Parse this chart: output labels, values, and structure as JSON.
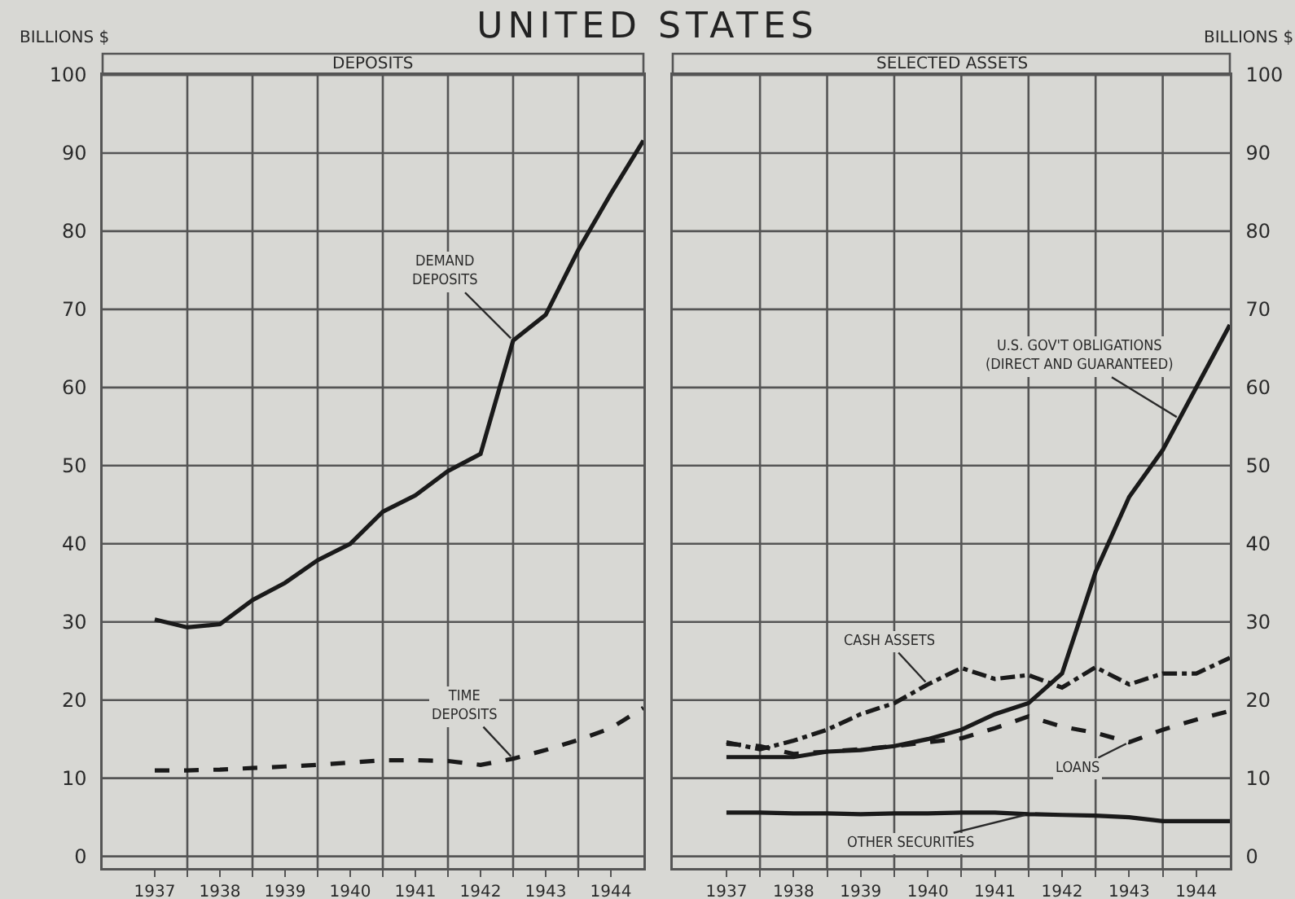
{
  "chart_data": [
    {
      "type": "line",
      "title": "UNITED STATES",
      "subtitle": "DEPOSITS",
      "ylabel": "BILLIONS $",
      "x": [
        1937,
        1937.5,
        1938,
        1938.5,
        1939,
        1939.5,
        1940,
        1940.5,
        1941,
        1941.5,
        1942,
        1942.5,
        1943,
        1943.5,
        1944,
        1944.5
      ],
      "series": [
        {
          "color": "#1a1a1a",
          "line_style": "solid",
          "values": [
            30.3,
            29.3,
            29.7,
            32.8,
            35,
            37.9,
            40,
            44.1,
            46.2,
            49.3,
            51.5,
            66,
            69.3,
            77.6,
            84.8,
            91.6
          ]
        },
        {
          "color": "#1a1a1a",
          "line_style": "dashed",
          "values": [
            11,
            11,
            11.1,
            11.3,
            11.5,
            11.7,
            12,
            12.3,
            12.3,
            12.2,
            11.7,
            12.5,
            13.6,
            14.9,
            16.4,
            19
          ]
        }
      ],
      "annotations": [
        {
          "text": "DEMAND\nDEPOSITS",
          "x": 1942.5,
          "y": 66
        },
        {
          "text": "TIME\nDEPOSITS",
          "x": 1942.5,
          "y": 12.5
        }
      ],
      "xlim": [
        1936.2,
        1944.5
      ],
      "xticks": [
        1937,
        {
          "value": 1937.5,
          "label": null
        },
        1938,
        {
          "value": 1938.5,
          "label": null
        },
        1939,
        {
          "value": 1939.5,
          "label": null
        },
        1940,
        {
          "value": 1940.5,
          "label": null
        },
        1941,
        {
          "value": 1941.5,
          "label": null
        },
        1942,
        {
          "value": 1942.5,
          "label": null
        },
        1943,
        {
          "value": 1943.5,
          "label": null
        },
        1944
      ],
      "ylim": [
        -1.5,
        100
      ],
      "yticks": [
        0,
        10,
        20,
        30,
        40,
        50,
        60,
        70,
        80,
        90,
        100
      ],
      "grid": true
    },
    {
      "type": "line",
      "subtitle": "SELECTED ASSETS",
      "ylabel": "BILLIONS $",
      "x": [
        1937,
        1937.5,
        1938,
        1938.5,
        1939,
        1939.5,
        1940,
        1940.5,
        1941,
        1941.5,
        1942,
        1942.5,
        1943,
        1943.5,
        1944,
        1944.5
      ],
      "series": [
        {
          "color": "#1a1a1a",
          "line_style": "solid",
          "values": [
            12.7,
            12.7,
            12.7,
            13.4,
            13.6,
            14.1,
            15,
            16.2,
            18.2,
            19.6,
            23.4,
            36.4,
            46,
            52,
            60,
            68
          ]
        },
        {
          "color": "#1a1a1a",
          "line_style": "dashdot",
          "values": [
            14.6,
            13.7,
            14.8,
            16.2,
            18.2,
            19.6,
            22,
            24.1,
            22.7,
            23.2,
            21.6,
            24.2,
            22,
            23.4,
            23.4,
            25.4
          ]
        },
        {
          "color": "#1a1a1a",
          "line_style": "dashed",
          "values": [
            14.4,
            14.1,
            13.1,
            13.4,
            13.7,
            14.1,
            14.6,
            15.1,
            16.4,
            17.9,
            16.6,
            15.8,
            14.6,
            16.2,
            17.5,
            18.6
          ]
        },
        {
          "color": "#1a1a1a",
          "line_style": "solid",
          "values": [
            5.6,
            5.6,
            5.5,
            5.5,
            5.4,
            5.5,
            5.5,
            5.6,
            5.6,
            5.4,
            5.3,
            5.2,
            5,
            4.5,
            4.5,
            4.5
          ]
        }
      ],
      "annotations": [
        {
          "text": "U.S. GOV'T OBLIGATIONS\n(DIRECT AND GUARANTEED)",
          "x": 1943.75,
          "y": 56
        },
        {
          "text": "CASH ASSETS",
          "x": 1940,
          "y": 22
        },
        {
          "text": "LOANS",
          "x": 1943,
          "y": 14.6
        },
        {
          "text": "OTHER SECURITIES",
          "x": 1941.5,
          "y": 5.4
        }
      ],
      "xlim": [
        1936.2,
        1944.5
      ],
      "xticks": [
        1937,
        {
          "value": 1937.5,
          "label": null
        },
        1938,
        {
          "value": 1938.5,
          "label": null
        },
        1939,
        {
          "value": 1939.5,
          "label": null
        },
        1940,
        {
          "value": 1940.5,
          "label": null
        },
        1941,
        {
          "value": 1941.5,
          "label": null
        },
        1942,
        {
          "value": 1942.5,
          "label": null
        },
        1943,
        {
          "value": 1943.5,
          "label": null
        },
        1944
      ],
      "ylim": [
        -1.5,
        100
      ],
      "yticks": [
        0,
        10,
        20,
        30,
        40,
        50,
        60,
        70,
        80,
        90,
        100
      ],
      "grid": true
    }
  ]
}
